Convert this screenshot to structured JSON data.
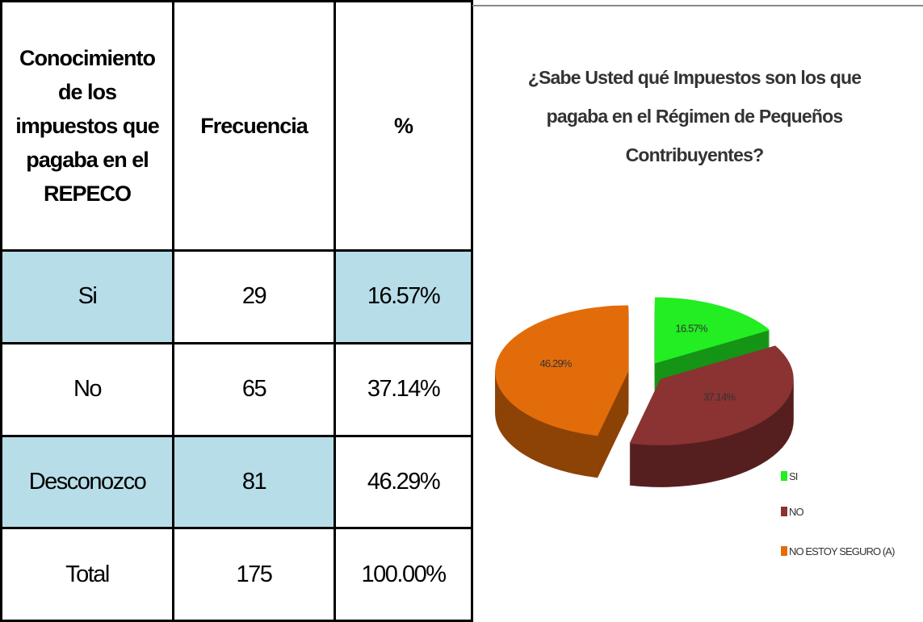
{
  "table": {
    "header": [
      "Conocimiento de los impuestos que pagaba en el REPECO",
      "Frecuencia",
      "%"
    ],
    "rows": [
      [
        "Si",
        "29",
        "16.57%"
      ],
      [
        "No",
        "65",
        "37.14%"
      ],
      [
        "Desconozco",
        "81",
        "46.29%"
      ],
      [
        "Total",
        "175",
        "100.00%"
      ]
    ]
  },
  "chart_data": {
    "type": "pie",
    "title": "¿Sabe Usted qué Impuestos son los que pagaba en el Régimen de Pequeños Contribuyentes?",
    "categories": [
      "SI",
      "NO",
      "NO ESTOY SEGURO (A)"
    ],
    "values": [
      16.57,
      37.14,
      46.29
    ],
    "value_labels": [
      "16.57%",
      "37.14%",
      "46.29%"
    ],
    "colors": [
      "#22ee22",
      "#8b3232",
      "#e36c0a"
    ],
    "legend": "right"
  }
}
